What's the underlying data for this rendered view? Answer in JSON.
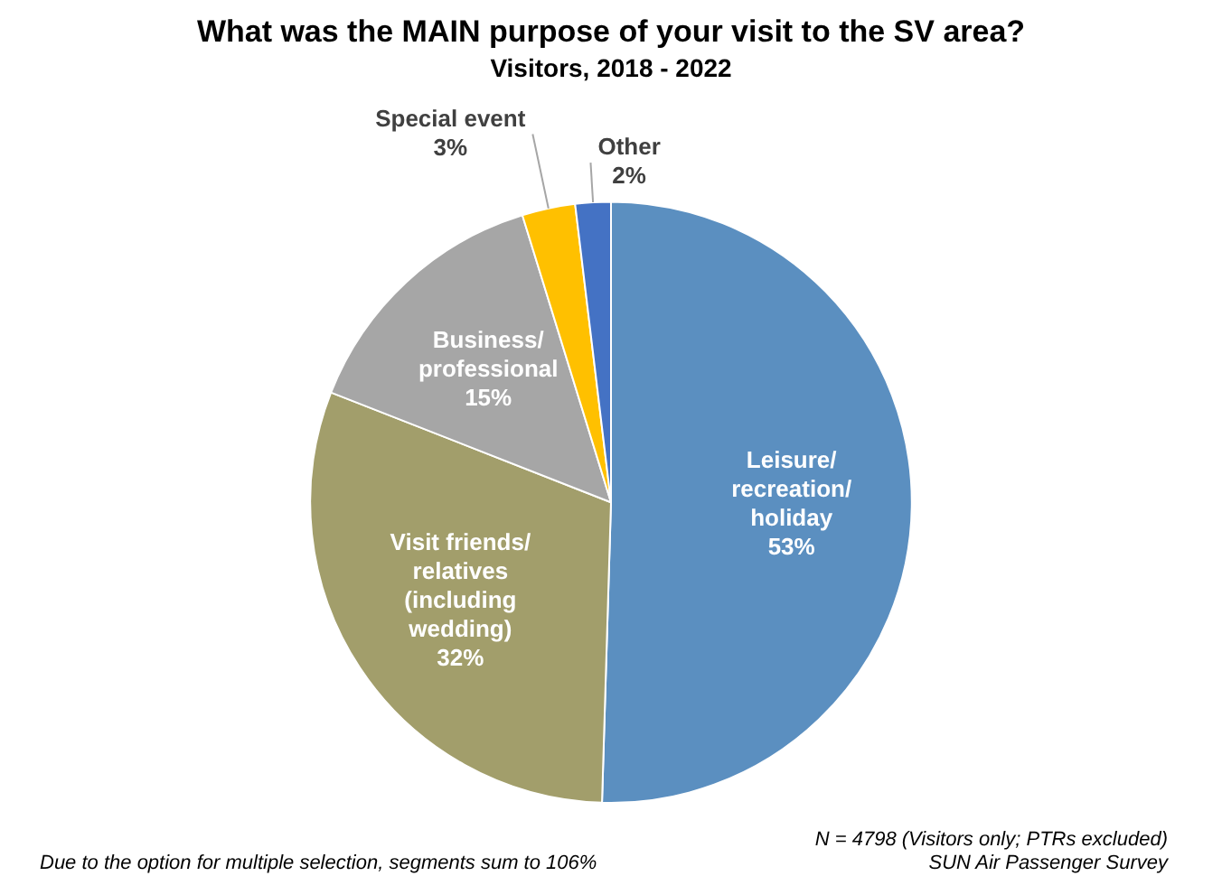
{
  "chart_data": {
    "type": "pie",
    "title": "What was the MAIN purpose of your visit to the SV area?",
    "subtitle": "Visitors, 2018 - 2022",
    "categories": [
      "Leisure/\nrecreation/\nholiday",
      "Visit friends/\nrelatives\n(including\nwedding)",
      "Business/\nprofessional",
      "Special event",
      "Other"
    ],
    "values": [
      53,
      32,
      15,
      3,
      2
    ],
    "value_labels": [
      "53%",
      "32%",
      "15%",
      "3%",
      "2%"
    ],
    "colors": [
      "#5b8fc0",
      "#a29e6b",
      "#a6a6a6",
      "#ffc000",
      "#4472c4"
    ],
    "legend": false,
    "annotations": [
      "N = 4798 (Visitors only; PTRs excluded)",
      "SUN Air Passenger Survey",
      "Due to the option for multiple selection, segments sum to 106%"
    ]
  }
}
